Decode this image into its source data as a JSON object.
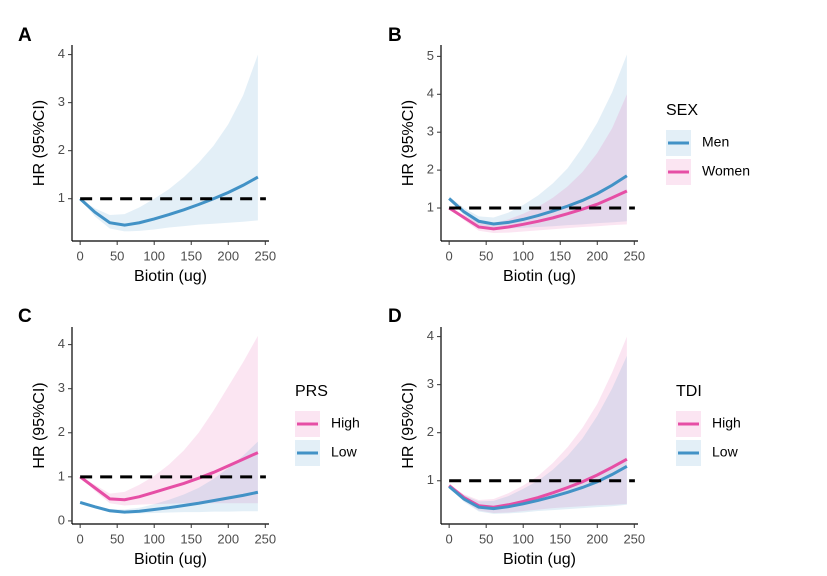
{
  "chart_data": [
    {
      "type": "line",
      "panel_label": "A",
      "xlabel": "Biotin (ug)",
      "ylabel": "HR (95%CI)",
      "x": [
        0,
        20,
        40,
        60,
        80,
        100,
        120,
        140,
        160,
        180,
        200,
        220,
        240
      ],
      "xlim": [
        -11,
        255
      ],
      "xticks": [
        0,
        50,
        100,
        150,
        200,
        250
      ],
      "ylim": [
        0.12,
        4.2
      ],
      "yticks": [
        1,
        2,
        3,
        4
      ],
      "reference_line": 1,
      "series": [
        {
          "color": "#4292c6",
          "values": [
            1.0,
            0.72,
            0.5,
            0.45,
            0.5,
            0.58,
            0.67,
            0.77,
            0.88,
            1.0,
            1.13,
            1.28,
            1.45
          ],
          "upper": [
            1.0,
            0.8,
            0.66,
            0.68,
            0.82,
            1.0,
            1.2,
            1.45,
            1.75,
            2.1,
            2.55,
            3.15,
            4.0
          ],
          "lower": [
            1.0,
            0.63,
            0.38,
            0.32,
            0.33,
            0.36,
            0.4,
            0.43,
            0.46,
            0.48,
            0.5,
            0.52,
            0.55
          ]
        }
      ]
    },
    {
      "type": "line",
      "panel_label": "B",
      "xlabel": "Biotin (ug)",
      "ylabel": "HR (95%CI)",
      "legend_title": "SEX",
      "x": [
        0,
        20,
        40,
        60,
        80,
        100,
        120,
        140,
        160,
        180,
        200,
        220,
        240
      ],
      "xlim": [
        -11,
        255
      ],
      "xticks": [
        0,
        50,
        100,
        150,
        200,
        250
      ],
      "ylim": [
        0.13,
        5.3
      ],
      "yticks": [
        1,
        2,
        3,
        4,
        5
      ],
      "reference_line": 1,
      "series": [
        {
          "name": "Men",
          "color": "#4292c6",
          "values": [
            1.25,
            0.9,
            0.65,
            0.58,
            0.62,
            0.7,
            0.8,
            0.92,
            1.05,
            1.2,
            1.38,
            1.6,
            1.85
          ],
          "upper": [
            1.3,
            1.0,
            0.78,
            0.75,
            0.88,
            1.08,
            1.33,
            1.65,
            2.05,
            2.6,
            3.25,
            4.05,
            5.05
          ],
          "lower": [
            1.2,
            0.82,
            0.55,
            0.46,
            0.46,
            0.48,
            0.5,
            0.52,
            0.55,
            0.57,
            0.6,
            0.62,
            0.65
          ]
        },
        {
          "name": "Women",
          "color": "#e64ea5",
          "values": [
            1.0,
            0.75,
            0.5,
            0.45,
            0.5,
            0.57,
            0.65,
            0.74,
            0.85,
            0.97,
            1.1,
            1.27,
            1.45
          ],
          "upper": [
            1.0,
            0.82,
            0.62,
            0.6,
            0.7,
            0.85,
            1.03,
            1.27,
            1.57,
            1.95,
            2.45,
            3.1,
            4.0
          ],
          "lower": [
            1.0,
            0.68,
            0.4,
            0.34,
            0.35,
            0.38,
            0.41,
            0.44,
            0.47,
            0.5,
            0.52,
            0.55,
            0.57
          ]
        }
      ]
    },
    {
      "type": "line",
      "panel_label": "C",
      "xlabel": "Biotin (ug)",
      "ylabel": "HR (95%CI)",
      "legend_title": "PRS",
      "x": [
        0,
        20,
        40,
        60,
        80,
        100,
        120,
        140,
        160,
        180,
        200,
        220,
        240
      ],
      "xlim": [
        -11,
        255
      ],
      "xticks": [
        0,
        50,
        100,
        150,
        200,
        250
      ],
      "ylim": [
        -0.07,
        4.4
      ],
      "yticks": [
        0,
        1,
        2,
        3,
        4
      ],
      "reference_line": 1,
      "series": [
        {
          "name": "High",
          "color": "#e64ea5",
          "values": [
            1.0,
            0.75,
            0.5,
            0.48,
            0.55,
            0.65,
            0.75,
            0.85,
            0.97,
            1.1,
            1.25,
            1.4,
            1.55
          ],
          "upper": [
            1.0,
            0.82,
            0.62,
            0.66,
            0.82,
            1.02,
            1.28,
            1.6,
            2.0,
            2.5,
            3.05,
            3.6,
            4.2
          ],
          "lower": [
            1.0,
            0.68,
            0.4,
            0.35,
            0.37,
            0.38,
            0.39,
            0.4,
            0.4,
            0.4,
            0.4,
            0.4,
            0.4
          ]
        },
        {
          "name": "Low",
          "color": "#4292c6",
          "values": [
            0.42,
            0.32,
            0.23,
            0.2,
            0.22,
            0.26,
            0.3,
            0.35,
            0.4,
            0.46,
            0.52,
            0.58,
            0.65
          ],
          "upper": [
            0.44,
            0.35,
            0.27,
            0.26,
            0.3,
            0.38,
            0.48,
            0.6,
            0.75,
            0.95,
            1.2,
            1.48,
            1.8
          ],
          "lower": [
            0.4,
            0.29,
            0.2,
            0.17,
            0.17,
            0.18,
            0.19,
            0.2,
            0.2,
            0.21,
            0.21,
            0.22,
            0.22
          ]
        }
      ]
    },
    {
      "type": "line",
      "panel_label": "D",
      "xlabel": "Biotin (ug)",
      "ylabel": "HR (95%CI)",
      "legend_title": "TDI",
      "x": [
        0,
        20,
        40,
        60,
        80,
        100,
        120,
        140,
        160,
        180,
        200,
        220,
        240
      ],
      "xlim": [
        -11,
        255
      ],
      "xticks": [
        0,
        50,
        100,
        150,
        200,
        250
      ],
      "ylim": [
        0.1,
        4.2
      ],
      "yticks": [
        1,
        2,
        3,
        4
      ],
      "reference_line": 1,
      "series": [
        {
          "name": "High",
          "color": "#e64ea5",
          "values": [
            0.9,
            0.65,
            0.48,
            0.45,
            0.5,
            0.57,
            0.65,
            0.75,
            0.86,
            0.98,
            1.12,
            1.28,
            1.45
          ],
          "upper": [
            0.92,
            0.72,
            0.6,
            0.62,
            0.74,
            0.9,
            1.1,
            1.37,
            1.7,
            2.1,
            2.6,
            3.25,
            4.0
          ],
          "lower": [
            0.88,
            0.58,
            0.38,
            0.33,
            0.34,
            0.37,
            0.4,
            0.43,
            0.45,
            0.47,
            0.49,
            0.5,
            0.52
          ]
        },
        {
          "name": "Low",
          "color": "#4292c6",
          "values": [
            0.88,
            0.62,
            0.45,
            0.42,
            0.46,
            0.52,
            0.59,
            0.67,
            0.76,
            0.86,
            0.98,
            1.13,
            1.3
          ],
          "upper": [
            0.9,
            0.7,
            0.57,
            0.58,
            0.68,
            0.83,
            1.0,
            1.23,
            1.52,
            1.88,
            2.35,
            2.92,
            3.6
          ],
          "lower": [
            0.86,
            0.56,
            0.36,
            0.31,
            0.32,
            0.34,
            0.37,
            0.39,
            0.41,
            0.43,
            0.45,
            0.47,
            0.5
          ]
        }
      ]
    }
  ]
}
